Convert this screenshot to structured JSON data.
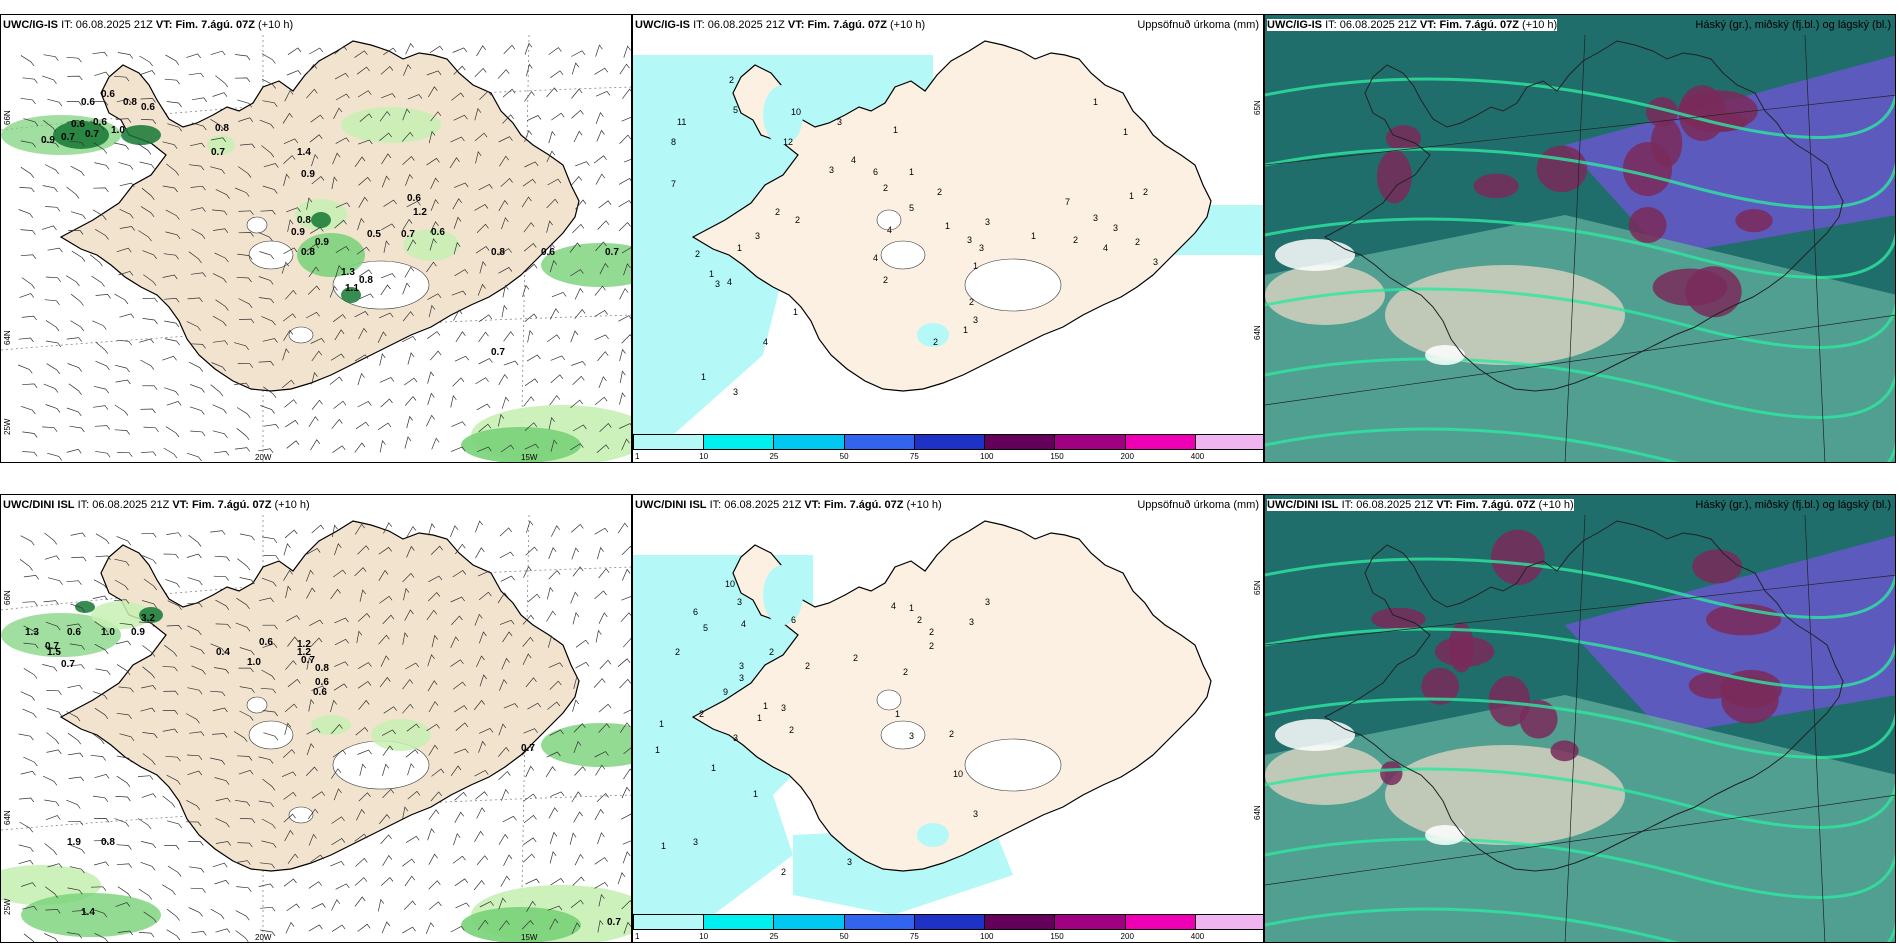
{
  "panels": {
    "wind_ig": {
      "model": "UWC/IG-IS",
      "it_label": "IT:",
      "it": "06.08.2025 21Z",
      "vt_label": "VT:",
      "vt": "Fim. 7.ágú. 07Z",
      "lead": "(+10 h)",
      "lat_labels": [
        "66N",
        "64N",
        "25W"
      ],
      "lon_labels": [
        "20W",
        "15W"
      ],
      "values": [
        "0.6",
        "0.6",
        "0.8",
        "0.6",
        "0.6",
        "0.6",
        "0.7",
        "0.9",
        "0.7",
        "1.0",
        "0.8",
        "0.7",
        "1.4",
        "0.9",
        "0.6",
        "1.2",
        "0.8",
        "0.5",
        "0.7",
        "0.6",
        "0.9",
        "0.9",
        "0.8",
        "1.3",
        "1.1",
        "0.8",
        "0.8",
        "0.6",
        "0.7",
        "0.7"
      ]
    },
    "precip_ig": {
      "model": "UWC/IG-IS",
      "it_label": "IT:",
      "it": "06.08.2025 21Z",
      "vt_label": "VT:",
      "vt": "Fim. 7.ágú. 07Z",
      "lead": "(+10 h)",
      "right_title": "Uppsöfnuð úrkoma (mm)",
      "lat_labels": [
        "65N",
        "64N"
      ],
      "values": [
        "2",
        "11",
        "5",
        "8",
        "7",
        "10",
        "12",
        "3",
        "1",
        "4",
        "3",
        "6",
        "2",
        "1",
        "5",
        "4",
        "2",
        "2",
        "3",
        "1",
        "2",
        "1",
        "3",
        "4",
        "2",
        "3",
        "1",
        "2",
        "3",
        "3",
        "1",
        "7",
        "2",
        "3",
        "4",
        "3",
        "2",
        "1",
        "2",
        "3",
        "1",
        "4",
        "3",
        "2",
        "1",
        "2",
        "4",
        "3",
        "1",
        "1",
        "1",
        "1"
      ]
    },
    "cloud_ig": {
      "model": "UWC/IG-IS",
      "it_label": "IT:",
      "it": "06.08.2025 21Z",
      "vt_label": "VT:",
      "vt": "Fim. 7.ágú. 07Z",
      "lead": "(+10 h)",
      "right_title": "Háský (gr.), miðský (fj.bl.) og lágský (bl.)"
    },
    "wind_dini": {
      "model": "UWC/DINI ISL",
      "it_label": "IT:",
      "it": "06.08.2025 21Z",
      "vt_label": "VT:",
      "vt": "Fim. 7.ágú. 07Z",
      "lead": "(+10 h)",
      "lat_labels": [
        "66N",
        "64N",
        "25W"
      ],
      "lon_labels": [
        "20W",
        "15W"
      ],
      "values": [
        "1.3",
        "0.6",
        "1.0",
        "3.2",
        "0.9",
        "0.7",
        "1.5",
        "0.7",
        "0.4",
        "0.6",
        "1.2",
        "0.7",
        "1.0",
        "0.8",
        "0.6",
        "1.2",
        "0.6",
        "0.7",
        "1.9",
        "0.8",
        "1.4",
        "0.7"
      ]
    },
    "precip_dini": {
      "model": "UWC/DINI ISL",
      "it_label": "IT:",
      "it": "06.08.2025 21Z",
      "vt_label": "VT:",
      "vt": "Fim. 7.ágú. 07Z",
      "lead": "(+10 h)",
      "right_title": "Uppsöfnuð úrkoma (mm)",
      "lat_labels": [
        "65N",
        "64N"
      ],
      "values": [
        "10",
        "6",
        "5",
        "3",
        "2",
        "4",
        "3",
        "6",
        "2",
        "2",
        "3",
        "9",
        "1",
        "3",
        "2",
        "1",
        "3",
        "2",
        "1",
        "1",
        "1",
        "1",
        "3",
        "1",
        "4",
        "1",
        "2",
        "2",
        "2",
        "3",
        "3",
        "2",
        "2",
        "1",
        "3",
        "2",
        "10",
        "3",
        "2",
        "3"
      ]
    },
    "cloud_dini": {
      "model": "UWC/DINI ISL",
      "it_label": "IT:",
      "it": "06.08.2025 21Z",
      "vt_label": "VT:",
      "vt": "Fim. 7.ágú. 07Z",
      "lead": "(+10 h)",
      "right_title": "Háský (gr.), miðský (fj.bl.) og lágský (bl.)"
    }
  },
  "colorbar": {
    "ticks": [
      "1",
      "10",
      "25",
      "50",
      "75",
      "100",
      "150",
      "200",
      "400"
    ],
    "colors": [
      "#b4f9f7",
      "#00f0f0",
      "#00c8f0",
      "#3264f0",
      "#1e32c8",
      "#64005a",
      "#a00082",
      "#f000b4",
      "#f0b4f0"
    ]
  },
  "colors": {
    "land": "#f2e3cf",
    "land_precip": "#fcf0e2",
    "sea_precip": "#b4f9f7",
    "green_light": "#c8f0b4",
    "green_mid": "#78d278",
    "green_dark": "#147832",
    "cloud_sea": "#1f6e6c",
    "cloud_high": "#7a2a5a",
    "cloud_mid": "#6458c8",
    "cloud_low": "#5aa898"
  }
}
